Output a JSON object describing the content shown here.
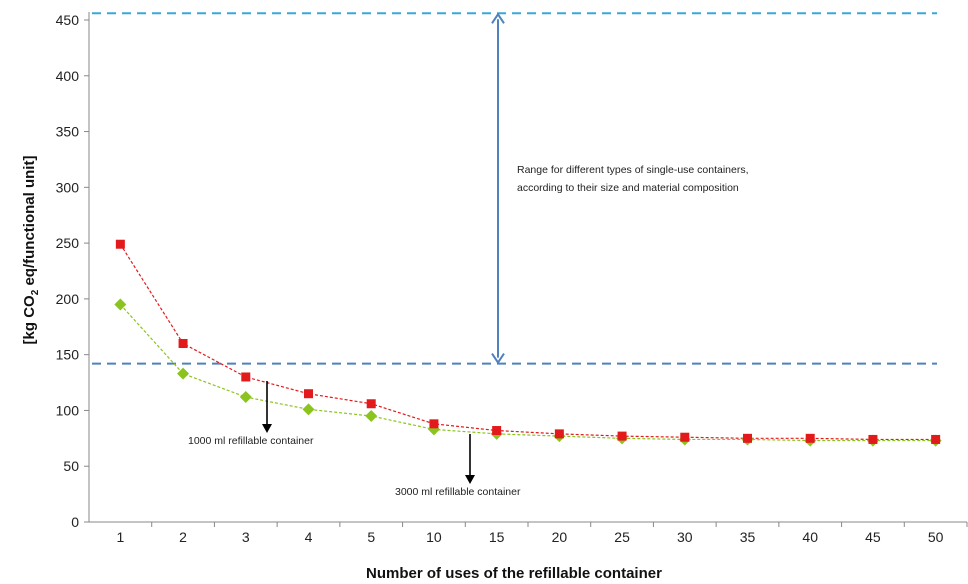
{
  "chart_data": {
    "type": "line",
    "categories": [
      "1",
      "2",
      "3",
      "4",
      "5",
      "10",
      "15",
      "20",
      "25",
      "30",
      "35",
      "40",
      "45",
      "50"
    ],
    "xlabel": "Number of uses of the refillable container",
    "ylabel": {
      "prefix": "[kg CO",
      "subscript": "2",
      "suffix": " eq/functional unit]"
    },
    "ylim": [
      0,
      460
    ],
    "yticks": [
      0,
      50,
      100,
      150,
      200,
      250,
      300,
      350,
      400,
      450
    ],
    "grid": false,
    "series": [
      {
        "marker": "square",
        "color": "#e31a1c",
        "values": [
          249,
          160,
          130,
          115,
          106,
          88,
          82,
          79,
          77,
          76,
          75,
          75,
          74,
          74
        ]
      },
      {
        "marker": "diamond",
        "color": "#8cc41f",
        "values": [
          195,
          133,
          112,
          101,
          95,
          83,
          79,
          77,
          75,
          74,
          74,
          73,
          73,
          73
        ]
      }
    ],
    "reference_lines": [
      {
        "value": 456,
        "color": "#3aa7d9",
        "style": "dashed"
      },
      {
        "value": 142,
        "color": "#4f81bd",
        "style": "dashed"
      }
    ],
    "range_arrow": {
      "from": 142,
      "to": 456,
      "color": "#4f81bd"
    },
    "annotations": {
      "range_line1": "Range for different types of single-use containers,",
      "range_line2": "according to their size and material composition",
      "container_1000": "1000 ml refillable container",
      "container_3000": "3000 ml refillable container"
    }
  }
}
